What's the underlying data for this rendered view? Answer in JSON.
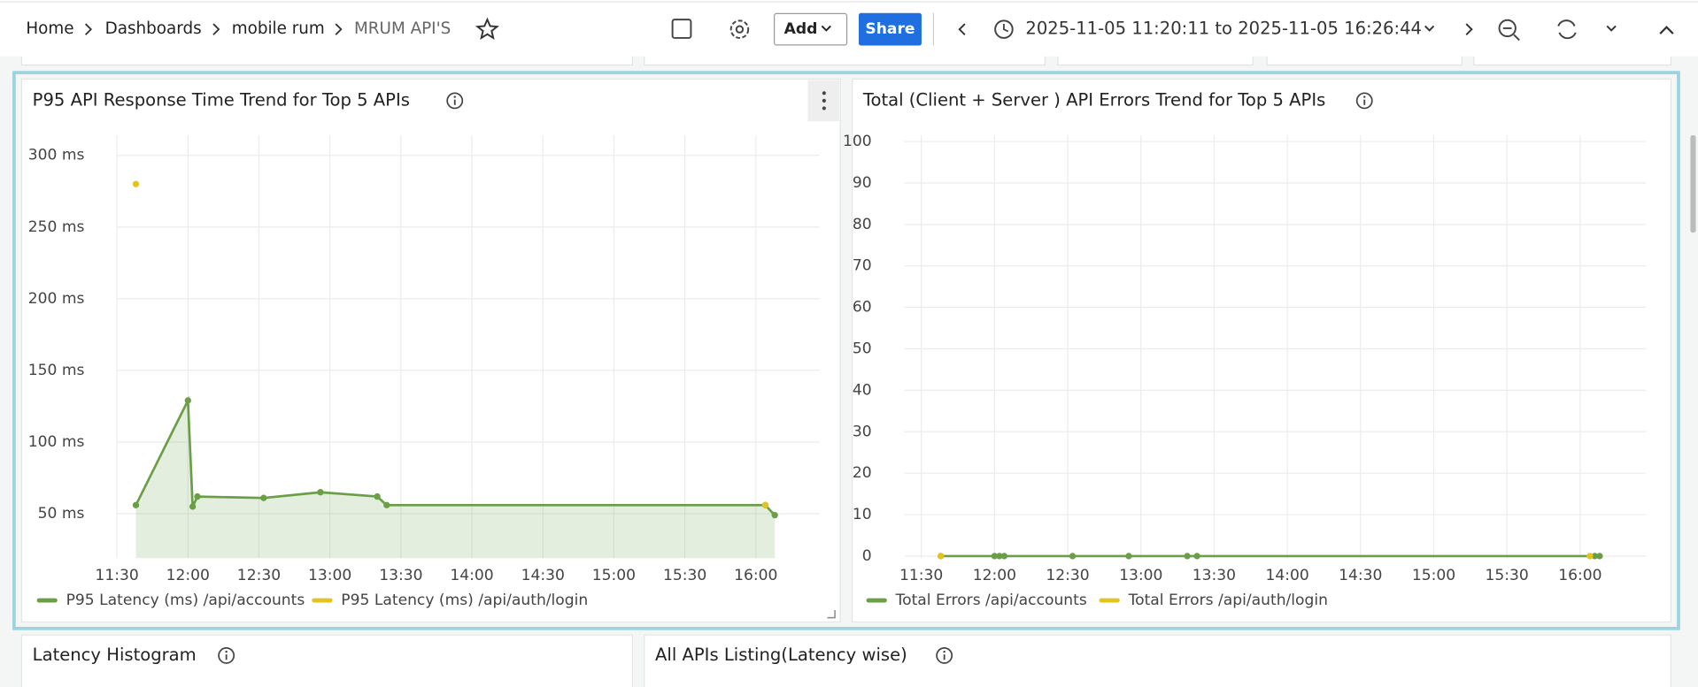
{
  "header": {
    "breadcrumbs": [
      "Home",
      "Dashboards",
      "mobile rum",
      "MRUM API'S"
    ],
    "buttons": [
      "Add",
      "Share"
    ],
    "time_range": "2025-11-05 11:20:11 to 2025-11-05 16:26:44"
  },
  "panels_below": [
    "Latency Histogram",
    "All APIs Listing(Latency wise)"
  ],
  "chart_data": [
    {
      "type": "line",
      "title": "P95 API Response Time Trend for Top 5 APIs",
      "area": true,
      "markers": true,
      "grid": true,
      "xlim": [
        "11:30",
        "16:27"
      ],
      "xticks": [
        "11:30",
        "12:00",
        "12:30",
        "13:00",
        "13:30",
        "14:00",
        "14:30",
        "15:00",
        "15:30",
        "16:00"
      ],
      "ylim": [
        19,
        314
      ],
      "yticks": [
        {
          "value": 50,
          "label": "50 ms"
        },
        {
          "value": 100,
          "label": "100 ms"
        },
        {
          "value": 150,
          "label": "150 ms"
        },
        {
          "value": 200,
          "label": "200 ms"
        },
        {
          "value": 250,
          "label": "250 ms"
        },
        {
          "value": 300,
          "label": "300 ms"
        }
      ],
      "series": [
        {
          "name": "P95 Latency (ms) /api/accounts",
          "color": "#6a9f48",
          "x": [
            "11:38",
            "12:00",
            "12:02",
            "12:04",
            "12:32",
            "12:56",
            "13:20",
            "13:24",
            "16:04",
            "16:08"
          ],
          "values": [
            56,
            129,
            55,
            62,
            61,
            65,
            62,
            56,
            56,
            49
          ]
        },
        {
          "name": "P95 Latency (ms) /api/auth/login",
          "color": "#e3c31c",
          "x": [
            "11:38",
            "12:00",
            "16:04"
          ],
          "values": [
            280,
            null,
            56
          ]
        }
      ]
    },
    {
      "type": "line",
      "title": "Total (Client + Server ) API Errors Trend for Top 5 APIs",
      "area": false,
      "markers": true,
      "grid": true,
      "xlim": [
        "11:23",
        "16:27"
      ],
      "xticks": [
        "11:30",
        "12:00",
        "12:30",
        "13:00",
        "13:30",
        "14:00",
        "14:30",
        "15:00",
        "15:30",
        "16:00"
      ],
      "ylim": [
        -0.5,
        101.5
      ],
      "yticks": [
        0,
        10,
        20,
        30,
        40,
        50,
        60,
        70,
        80,
        90,
        100
      ],
      "series": [
        {
          "name": "Total Errors /api/accounts",
          "color": "#6a9f48",
          "x": [
            "11:38",
            "12:00",
            "12:02",
            "12:04",
            "12:32",
            "12:55",
            "13:19",
            "13:23",
            "16:06",
            "16:08"
          ],
          "values": [
            0,
            0,
            0,
            0,
            0,
            0,
            0,
            0,
            0,
            0
          ]
        },
        {
          "name": "Total Errors /api/auth/login",
          "color": "#e3c31c",
          "x": [
            "11:38",
            "12:00",
            "16:04"
          ],
          "values": [
            0,
            null,
            0
          ]
        }
      ]
    }
  ]
}
